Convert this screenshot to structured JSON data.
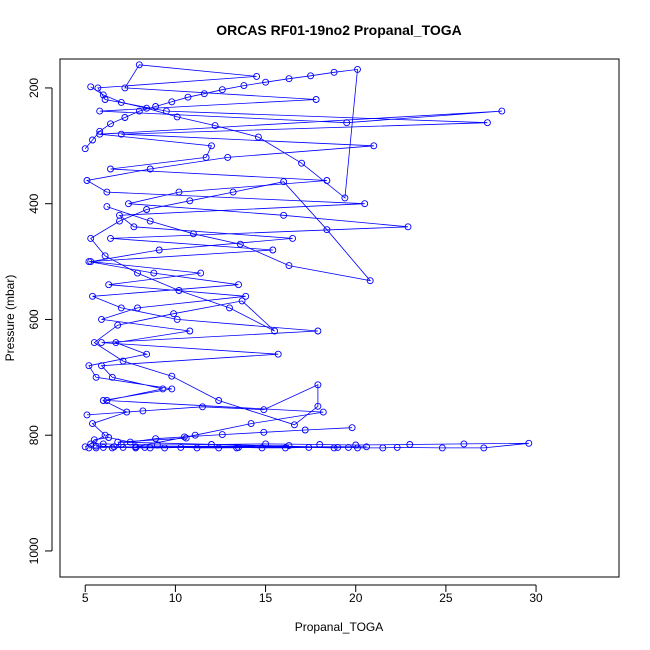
{
  "chart_data": {
    "type": "line",
    "title": "ORCAS RF01-19no2 Propanal_TOGA",
    "xlabel": "Propanal_TOGA",
    "ylabel": "Pressure (mbar)",
    "xlim": [
      3.6,
      34.6
    ],
    "ylim": [
      1045,
      150
    ],
    "y_reversed": true,
    "x_ticks": [
      5,
      10,
      15,
      20,
      25,
      30
    ],
    "x_tick_labels": [
      "5",
      "10",
      "15",
      "20",
      "25",
      "30"
    ],
    "y_ticks": [
      200,
      400,
      600,
      800,
      1000
    ],
    "y_tick_labels": [
      "200",
      "400",
      "600",
      "800",
      "1000"
    ],
    "grid": false,
    "series": [
      {
        "color": "#0000ff",
        "marker": "open-circle",
        "x": [
          5.0,
          6.1,
          5.4,
          7.3,
          6.0,
          9.8,
          5.6,
          5.2,
          8.4,
          6.7,
          10.8,
          5.9,
          7.9,
          13.9,
          6.3,
          11.4,
          5.3,
          9.1,
          16.5,
          7.7,
          6.9,
          20.5,
          6.2,
          5.1,
          8.6,
          12.9,
          21.0,
          7.0,
          27.3,
          9.5,
          6.1,
          5.7,
          14.5,
          8.0,
          7.2,
          17.8,
          5.8,
          19.5,
          28.1,
          5.8,
          12.0,
          11.7,
          6.4,
          18.4,
          10.2,
          7.4,
          16.0,
          22.9,
          6.4,
          15.4,
          5.2,
          8.8,
          13.5,
          5.4,
          7.0,
          10.1,
          17.9,
          5.9,
          15.7,
          5.9,
          6.5,
          9.3,
          6.2,
          18.2,
          14.2,
          11.1,
          7.8,
          20.6,
          8.3,
          5.6,
          6.6,
          13.4,
          16.3,
          7.8,
          19.0,
          6.8,
          10.6
        ],
        "y": [
          820,
          800,
          780,
          760,
          740,
          720,
          700,
          680,
          660,
          640,
          620,
          600,
          580,
          560,
          540,
          520,
          500,
          480,
          460,
          440,
          420,
          400,
          380,
          360,
          340,
          320,
          300,
          280,
          260,
          240,
          220,
          200,
          180,
          160,
          200,
          220,
          240,
          260,
          240,
          280,
          300,
          320,
          340,
          360,
          380,
          400,
          420,
          440,
          460,
          480,
          500,
          520,
          540,
          560,
          580,
          600,
          620,
          640,
          660,
          680,
          700,
          720,
          740,
          760,
          780,
          800,
          820,
          820,
          821,
          819,
          820,
          822,
          818,
          820,
          821,
          812,
          805
        ]
      },
      {
        "color": "#0000ff",
        "marker": "open-circle",
        "x": [
          5.2,
          5.6,
          6.0,
          6.5,
          7.1,
          7.8,
          8.6,
          9.4,
          10.3,
          11.2,
          12.4,
          13.5,
          14.8,
          16.1,
          17.4,
          18.8,
          19.6,
          20.1,
          21.5,
          22.3,
          24.8,
          27.1,
          29.6,
          26.0,
          23.0,
          20.0,
          18.0,
          15.0,
          12.0,
          9.0,
          7.0,
          6.0,
          5.3,
          5.5,
          6.3,
          7.5,
          8.9,
          10.5,
          12.6,
          14.9,
          17.2,
          19.8
        ],
        "y": [
          822,
          822,
          821,
          822,
          821,
          822,
          822,
          822,
          821,
          822,
          822,
          821,
          822,
          822,
          821,
          822,
          821,
          822,
          822,
          821,
          822,
          822,
          814,
          815,
          816,
          817,
          816,
          815,
          816,
          817,
          816,
          815,
          815,
          808,
          804,
          812,
          806,
          803,
          799,
          795,
          791,
          787
        ]
      },
      {
        "color": "#0000ff",
        "marker": "open-circle",
        "x": [
          5.1,
          8.2,
          11.5,
          14.9,
          17.9,
          17.9,
          16.6,
          12.4,
          9.8,
          7.1,
          5.5,
          6.8,
          9.9,
          13.7,
          15.5,
          13.0,
          10.2,
          7.9,
          6.1,
          5.3,
          6.9,
          8.4,
          10.8,
          13.2,
          16.0,
          18.4,
          20.8,
          16.3,
          13.6,
          11.0,
          8.6,
          6.2
        ],
        "y": [
          765,
          758,
          751,
          756,
          713,
          750,
          782,
          740,
          698,
          672,
          640,
          610,
          590,
          568,
          620,
          580,
          550,
          520,
          490,
          460,
          430,
          410,
          395,
          380,
          362,
          445,
          533,
          507,
          470,
          452,
          430,
          405
        ]
      },
      {
        "color": "#0000ff",
        "marker": "open-circle",
        "x": [
          5.0,
          5.4,
          5.8,
          6.4,
          7.2,
          8.0,
          8.9,
          9.8,
          10.7,
          11.6,
          12.6,
          13.8,
          15.0,
          16.3,
          17.5,
          18.8,
          20.1,
          19.4,
          17.0,
          14.6,
          12.2,
          10.1,
          8.4,
          7.0,
          6.0,
          5.3
        ],
        "y": [
          305,
          290,
          275,
          262,
          251,
          240,
          232,
          224,
          216,
          210,
          203,
          196,
          190,
          184,
          179,
          173,
          168,
          390,
          330,
          285,
          265,
          250,
          235,
          225,
          212,
          198
        ]
      }
    ]
  }
}
